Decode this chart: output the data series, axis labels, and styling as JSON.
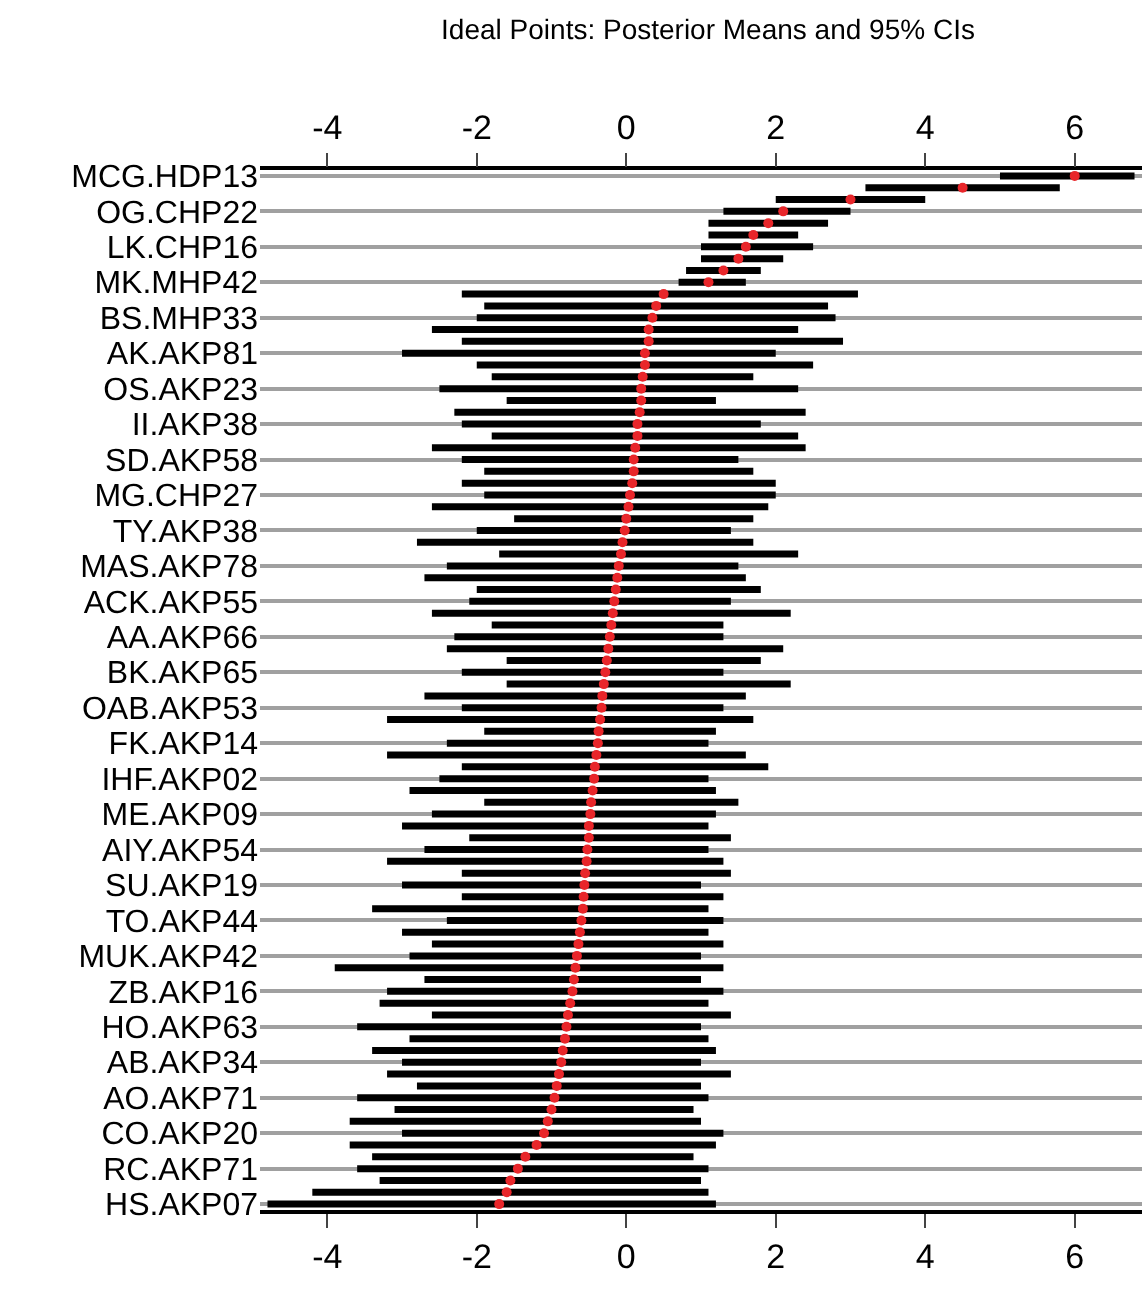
{
  "chart_data": {
    "type": "scatter",
    "orientation": "horizontal",
    "title": "Ideal Points: Posterior Means and 95% CIs",
    "categories": [
      "MCG.HDP13",
      null,
      null,
      "OG.CHP22",
      null,
      null,
      "LK.CHP16",
      null,
      null,
      "MK.MHP42",
      null,
      null,
      "BS.MHP33",
      null,
      null,
      "AK.AKP81",
      null,
      null,
      "OS.AKP23",
      null,
      null,
      "II.AKP38",
      null,
      null,
      "SD.AKP58",
      null,
      null,
      "MG.CHP27",
      null,
      null,
      "TY.AKP38",
      null,
      null,
      "MAS.AKP78",
      null,
      null,
      "ACK.AKP55",
      null,
      null,
      "AA.AKP66",
      null,
      null,
      "BK.AKP65",
      null,
      null,
      "OAB.AKP53",
      null,
      null,
      "FK.AKP14",
      null,
      null,
      "IHF.AKP02",
      null,
      null,
      "ME.AKP09",
      null,
      null,
      "AIY.AKP54",
      null,
      null,
      "SU.AKP19",
      null,
      null,
      "TO.AKP44",
      null,
      null,
      "MUK.AKP42",
      null,
      null,
      "ZB.AKP16",
      null,
      null,
      "HO.AKP63",
      null,
      null,
      "AB.AKP34",
      null,
      null,
      "AO.AKP71",
      null,
      null,
      "CO.AKP20",
      null,
      null,
      "RC.AKP71",
      null,
      null,
      "HS.AKP07"
    ],
    "values": [
      6.0,
      4.5,
      3.0,
      2.1,
      1.9,
      1.7,
      1.6,
      1.5,
      1.3,
      1.1,
      0.5,
      0.4,
      0.35,
      0.3,
      0.3,
      0.25,
      0.25,
      0.22,
      0.2,
      0.2,
      0.18,
      0.15,
      0.15,
      0.12,
      0.1,
      0.1,
      0.08,
      0.05,
      0.03,
      0.0,
      -0.02,
      -0.05,
      -0.07,
      -0.1,
      -0.12,
      -0.14,
      -0.16,
      -0.18,
      -0.2,
      -0.22,
      -0.24,
      -0.26,
      -0.28,
      -0.3,
      -0.32,
      -0.33,
      -0.35,
      -0.37,
      -0.38,
      -0.4,
      -0.42,
      -0.43,
      -0.45,
      -0.47,
      -0.48,
      -0.5,
      -0.5,
      -0.52,
      -0.53,
      -0.55,
      -0.56,
      -0.57,
      -0.58,
      -0.6,
      -0.62,
      -0.64,
      -0.66,
      -0.68,
      -0.7,
      -0.72,
      -0.75,
      -0.78,
      -0.8,
      -0.82,
      -0.85,
      -0.87,
      -0.9,
      -0.93,
      -0.96,
      -1.0,
      -1.05,
      -1.1,
      -1.2,
      -1.35,
      -1.45,
      -1.55,
      -1.6,
      -1.7
    ],
    "errors": [
      [
        5.0,
        6.8
      ],
      [
        3.2,
        5.8
      ],
      [
        2.0,
        4.0
      ],
      [
        1.3,
        3.0
      ],
      [
        1.1,
        2.7
      ],
      [
        1.1,
        2.3
      ],
      [
        1.0,
        2.5
      ],
      [
        1.0,
        2.1
      ],
      [
        0.8,
        1.8
      ],
      [
        0.7,
        1.6
      ],
      [
        -2.2,
        3.1
      ],
      [
        -1.9,
        2.7
      ],
      [
        -2.0,
        2.8
      ],
      [
        -2.6,
        2.3
      ],
      [
        -2.2,
        2.9
      ],
      [
        -3.0,
        2.0
      ],
      [
        -2.0,
        2.5
      ],
      [
        -1.8,
        1.7
      ],
      [
        -2.5,
        2.3
      ],
      [
        -1.6,
        1.2
      ],
      [
        -2.3,
        2.4
      ],
      [
        -2.2,
        1.8
      ],
      [
        -1.8,
        2.3
      ],
      [
        -2.6,
        2.4
      ],
      [
        -2.2,
        1.5
      ],
      [
        -1.9,
        1.7
      ],
      [
        -2.2,
        2.0
      ],
      [
        -1.9,
        2.0
      ],
      [
        -2.6,
        1.9
      ],
      [
        -1.5,
        1.7
      ],
      [
        -2.0,
        1.4
      ],
      [
        -2.8,
        1.7
      ],
      [
        -1.7,
        2.3
      ],
      [
        -2.4,
        1.5
      ],
      [
        -2.7,
        1.6
      ],
      [
        -2.0,
        1.8
      ],
      [
        -2.1,
        1.4
      ],
      [
        -2.6,
        2.2
      ],
      [
        -1.8,
        1.3
      ],
      [
        -2.3,
        1.3
      ],
      [
        -2.4,
        2.1
      ],
      [
        -1.6,
        1.8
      ],
      [
        -2.2,
        1.3
      ],
      [
        -1.6,
        2.2
      ],
      [
        -2.7,
        1.6
      ],
      [
        -2.2,
        1.3
      ],
      [
        -3.2,
        1.7
      ],
      [
        -1.9,
        1.2
      ],
      [
        -2.4,
        1.1
      ],
      [
        -3.2,
        1.6
      ],
      [
        -2.2,
        1.9
      ],
      [
        -2.5,
        1.1
      ],
      [
        -2.9,
        1.2
      ],
      [
        -1.9,
        1.5
      ],
      [
        -2.6,
        1.2
      ],
      [
        -3.0,
        1.1
      ],
      [
        -2.1,
        1.4
      ],
      [
        -2.7,
        1.1
      ],
      [
        -3.2,
        1.3
      ],
      [
        -2.2,
        1.4
      ],
      [
        -3.0,
        1.0
      ],
      [
        -2.2,
        1.3
      ],
      [
        -3.4,
        1.1
      ],
      [
        -2.4,
        1.3
      ],
      [
        -3.0,
        1.1
      ],
      [
        -2.6,
        1.3
      ],
      [
        -2.9,
        1.0
      ],
      [
        -3.9,
        1.3
      ],
      [
        -2.7,
        1.0
      ],
      [
        -3.2,
        1.3
      ],
      [
        -3.3,
        1.1
      ],
      [
        -2.6,
        1.4
      ],
      [
        -3.6,
        1.0
      ],
      [
        -2.9,
        1.1
      ],
      [
        -3.4,
        1.2
      ],
      [
        -3.0,
        1.0
      ],
      [
        -3.2,
        1.4
      ],
      [
        -2.8,
        1.0
      ],
      [
        -3.6,
        1.1
      ],
      [
        -3.1,
        0.9
      ],
      [
        -3.7,
        1.0
      ],
      [
        -3.0,
        1.3
      ],
      [
        -3.7,
        1.2
      ],
      [
        -3.4,
        0.9
      ],
      [
        -3.6,
        1.1
      ],
      [
        -3.3,
        1.0
      ],
      [
        -4.2,
        1.1
      ],
      [
        -4.8,
        1.2
      ]
    ],
    "color": "#e8262a",
    "marker": "circle",
    "xlim": [
      -4.9,
      6.9
    ],
    "xticks": [
      -4,
      -2,
      0,
      2,
      4,
      6
    ],
    "x2lim": [
      -4.9,
      6.9
    ],
    "x2ticks": [
      -4,
      -2,
      0,
      2,
      4,
      6
    ],
    "grid": "y"
  }
}
